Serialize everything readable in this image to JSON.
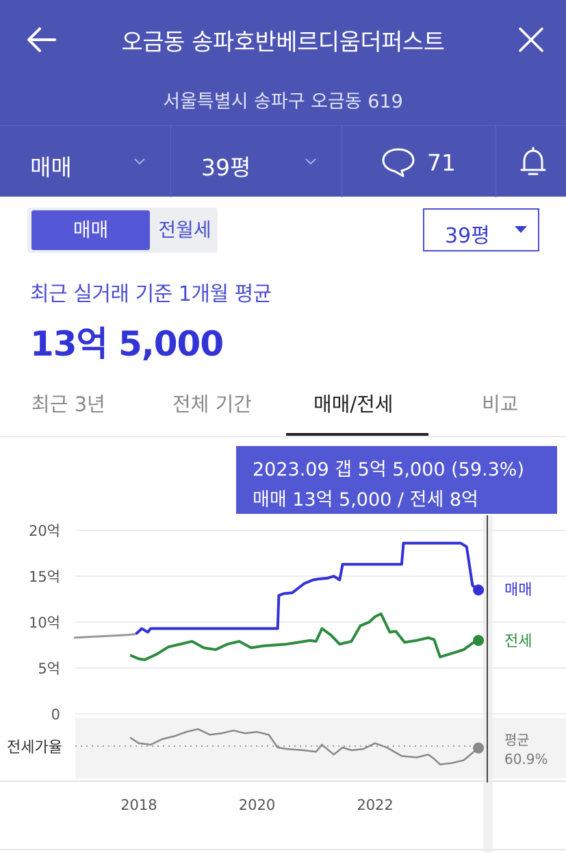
{
  "header": {
    "title": "오금동 송파호반베르디움더퍼스트",
    "address": "서울특별시 송파구 오금동 619",
    "trade_type": "매매",
    "area": "39평",
    "comment_count": "71",
    "back_icon": "arrow-left-icon",
    "close_icon": "close-icon",
    "comment_icon": "speech-bubble-icon",
    "bell_icon": "bell-icon"
  },
  "controls": {
    "toggle_active": "매매",
    "toggle_inactive": "전월세",
    "size_select": "39평"
  },
  "summary": {
    "label": "최근 실거래 기준 1개월 평균",
    "price": "13억 5,000"
  },
  "tabs": [
    "최근 3년",
    "전체 기간",
    "매매/전세",
    "비교"
  ],
  "active_tab": "매매/전세",
  "tooltip": {
    "line1": "2023.09  갭 5억 5,000 (59.3%)",
    "line2": "매매 13억 5,000 / 전세 8억"
  },
  "colors": {
    "header": "#4b53b3",
    "sale": "#3232d6",
    "jeonse": "#2e8b3e",
    "ratio": "#888888",
    "pre_history": "#999999"
  },
  "chart_data": {
    "type": "line",
    "ylabel": "",
    "ylim": [
      0,
      20
    ],
    "yticks": [
      "20억",
      "15억",
      "10억",
      "5억",
      "0"
    ],
    "xticks": [
      "2018",
      "2020",
      "2022"
    ],
    "xlim": [
      2016.9,
      2023.9
    ],
    "ratio_label": "전세가율",
    "average_label": "평균",
    "average_value": "60.9%",
    "series": [
      {
        "name": "매매",
        "x": [
          2016.9,
          2017.2,
          2017.5,
          2017.8,
          2017.95
        ],
        "values": [
          8.3,
          8.4,
          8.5,
          8.6,
          8.7
        ],
        "style": "pre"
      },
      {
        "name": "매매",
        "x": [
          2017.95,
          2018.05,
          2018.15,
          2018.2,
          2020.35,
          2020.37,
          2020.45,
          2020.6,
          2020.8,
          2020.95,
          2021.05,
          2021.2,
          2021.3,
          2021.4,
          2021.45,
          2021.55,
          2022.0,
          2022.45,
          2022.48,
          2023.0,
          2023.35,
          2023.45,
          2023.55,
          2023.65,
          2023.75
        ],
        "values": [
          8.7,
          9.3,
          8.9,
          9.3,
          9.3,
          12.9,
          13.1,
          13.2,
          14.2,
          14.6,
          14.7,
          14.8,
          15.0,
          14.6,
          16.3,
          16.3,
          16.3,
          16.3,
          18.6,
          18.6,
          18.6,
          18.6,
          18.2,
          14.0,
          13.5
        ]
      },
      {
        "name": "전세",
        "x": [
          2017.85,
          2018.0,
          2018.1,
          2018.3,
          2018.5,
          2018.7,
          2018.9,
          2019.1,
          2019.3,
          2019.5,
          2019.7,
          2019.9,
          2020.1,
          2020.3,
          2020.5,
          2020.7,
          2020.9,
          2021.0,
          2021.1,
          2021.25,
          2021.4,
          2021.6,
          2021.75,
          2021.9,
          2022.0,
          2022.1,
          2022.25,
          2022.35,
          2022.5,
          2022.7,
          2022.9,
          2023.0,
          2023.1,
          2023.3,
          2023.5,
          2023.65,
          2023.75
        ],
        "values": [
          6.4,
          6.0,
          5.9,
          6.5,
          7.3,
          7.6,
          7.9,
          7.2,
          7.0,
          7.6,
          7.9,
          7.2,
          7.4,
          7.5,
          7.6,
          7.8,
          8.0,
          7.9,
          9.3,
          8.6,
          7.6,
          7.9,
          9.6,
          10.0,
          10.6,
          10.9,
          8.9,
          9.0,
          7.8,
          8.0,
          8.3,
          8.1,
          6.2,
          6.6,
          7.0,
          7.7,
          8.0
        ]
      },
      {
        "name": "전세가율",
        "x": [
          2017.85,
          2018.0,
          2018.2,
          2018.4,
          2018.6,
          2018.8,
          2019.0,
          2019.2,
          2019.4,
          2019.6,
          2019.8,
          2020.0,
          2020.2,
          2020.35,
          2020.5,
          2020.8,
          2021.0,
          2021.1,
          2021.3,
          2021.45,
          2021.6,
          2021.8,
          2022.0,
          2022.2,
          2022.45,
          2022.7,
          2022.9,
          2023.0,
          2023.1,
          2023.3,
          2023.5,
          2023.75
        ],
        "values": [
          74,
          66,
          64,
          72,
          76,
          82,
          86,
          78,
          80,
          84,
          80,
          82,
          78,
          60,
          58,
          56,
          54,
          64,
          50,
          60,
          56,
          58,
          66,
          60,
          48,
          46,
          50,
          44,
          36,
          38,
          42,
          59.3
        ]
      }
    ]
  }
}
